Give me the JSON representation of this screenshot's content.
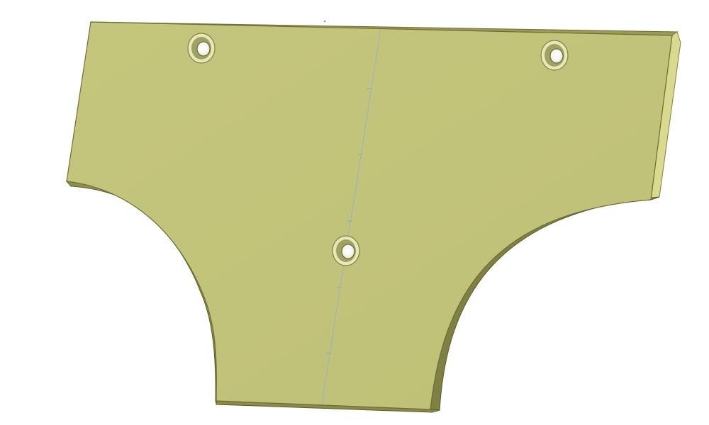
{
  "viewer": {
    "background": "#ffffff"
  },
  "part": {
    "shape": "bracket plate with two arc cutouts",
    "hole_count": 3,
    "colors": {
      "face": "#c2c37a",
      "edge": "#7f8144",
      "edge_light": "#d9d98f",
      "edge_top": "#9a9b57",
      "outline": "#5a5b2c",
      "hole_rim": "#e7e8b7",
      "hole_shadow": "#888946",
      "center_line": "#7fa3c8"
    },
    "icons": {
      "hole": "countersunk-hole-icon",
      "axis": "center-axis-line"
    }
  }
}
